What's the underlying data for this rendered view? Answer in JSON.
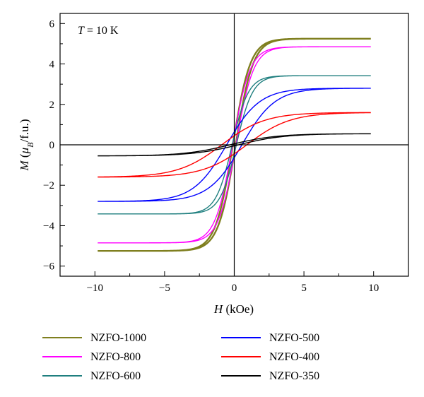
{
  "chart_data": {
    "type": "line",
    "annotation": {
      "text_italic": "T",
      "text_rest": " = 10 K"
    },
    "xlabel": {
      "symbol": "H",
      "unit": " (kOe)"
    },
    "ylabel": {
      "symbol": "M",
      "open": " (",
      "mu": "μ",
      "sub": "B",
      "unit": "/f.u.)"
    },
    "xlim": [
      -12.5,
      12.5
    ],
    "ylim": [
      -6.5,
      6.5
    ],
    "xticks": [
      -10,
      -5,
      0,
      5,
      10
    ],
    "xtick_labels": [
      "−10",
      "−5",
      "0",
      "5",
      "10"
    ],
    "yticks": [
      -6,
      -4,
      -2,
      0,
      2,
      4,
      6
    ],
    "ytick_labels": [
      "−6",
      "−4",
      "−2",
      "0",
      "2",
      "4",
      "6"
    ],
    "grid": false,
    "legend_position": "below",
    "series": [
      {
        "name": "NZFO-1000",
        "color": "#7f7f1f",
        "Ms": 5.25,
        "Hc": 0.1,
        "k": 0.8,
        "width": 2.4
      },
      {
        "name": "NZFO-800",
        "color": "#ff00ff",
        "Ms": 4.85,
        "Hc": 0.12,
        "k": 0.8,
        "width": 1.4
      },
      {
        "name": "NZFO-600",
        "color": "#1f7f7f",
        "Ms": 3.42,
        "Hc": 0.15,
        "k": 0.85,
        "width": 1.4
      },
      {
        "name": "NZFO-500",
        "color": "#0000ff",
        "Ms": 2.8,
        "Hc": 0.55,
        "k": 0.42,
        "width": 1.4
      },
      {
        "name": "NZFO-400",
        "color": "#ff0000",
        "Ms": 1.6,
        "Hc": 0.9,
        "k": 0.32,
        "width": 1.4
      },
      {
        "name": "NZFO-350",
        "color": "#000000",
        "Ms": 0.55,
        "Hc": 0.3,
        "k": 0.3,
        "width": 1.4
      }
    ]
  }
}
